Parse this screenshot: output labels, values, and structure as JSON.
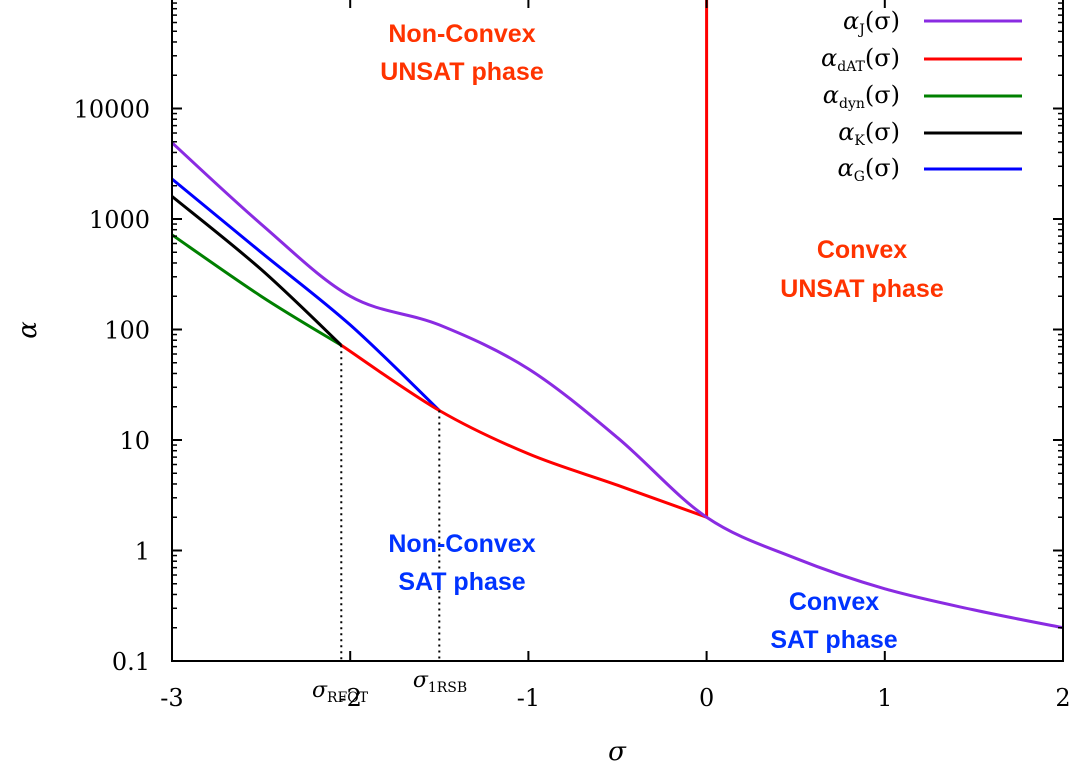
{
  "chart_data": {
    "type": "line",
    "xlabel": "σ",
    "ylabel": "α",
    "xlim": [
      -3,
      2
    ],
    "ylim": [
      0.1,
      100000
    ],
    "y_scale": "log",
    "x_ticks": [
      "-3",
      "-2",
      "-1",
      "0",
      "1",
      "2"
    ],
    "y_ticks": [
      "0.1",
      "1",
      "10",
      "100",
      "1000",
      "10000"
    ],
    "grid": false,
    "legend_position": "top-right",
    "series": [
      {
        "name": "α_J(σ)",
        "base": "α",
        "subscript": "J",
        "arg": "(σ)",
        "color": "#8a2be2",
        "x": [
          -3,
          -2.5,
          -2,
          -1.5,
          -1,
          -0.5,
          0,
          0.5,
          1,
          1.5,
          2
        ],
        "y": [
          4900,
          900,
          200,
          110,
          44,
          10.5,
          2,
          0.85,
          0.45,
          0.29,
          0.2
        ]
      },
      {
        "name": "α_dAT(σ)",
        "base": "α",
        "subscript": "dAT",
        "arg": "(σ)",
        "color": "#ff0000",
        "x": [
          -2.05,
          -1.5,
          -1,
          -0.5,
          0,
          0,
          0
        ],
        "y": [
          72,
          18.5,
          7.5,
          3.9,
          2,
          2,
          100000
        ]
      },
      {
        "name": "α_dyn(σ)",
        "base": "α",
        "subscript": "dyn",
        "arg": "(σ)",
        "color": "#008000",
        "x": [
          -3,
          -2.5,
          -2.05
        ],
        "y": [
          720,
          200,
          72
        ]
      },
      {
        "name": "α_K(σ)",
        "base": "α",
        "subscript": "K",
        "arg": "(σ)",
        "color": "#000000",
        "x": [
          -3,
          -2.5,
          -2.05
        ],
        "y": [
          1600,
          350,
          72
        ]
      },
      {
        "name": "α_G(σ)",
        "base": "α",
        "subscript": "G",
        "arg": "(σ)",
        "color": "#0000ff",
        "x": [
          -3,
          -2.5,
          -2,
          -1.5
        ],
        "y": [
          2300,
          500,
          110,
          18.5
        ]
      }
    ],
    "markers": [
      {
        "base": "σ",
        "subscript": "RFOT",
        "x": -2.05,
        "y": 72
      },
      {
        "base": "σ",
        "subscript": "1RSB",
        "x": -1.5,
        "y": 18.5
      }
    ],
    "annotations": [
      {
        "line1": "Non-Convex",
        "line2": "UNSAT phase",
        "color": "#ff3300"
      },
      {
        "line1": "Convex",
        "line2": "UNSAT phase",
        "color": "#ff3300"
      },
      {
        "line1": "Non-Convex",
        "line2": "SAT phase",
        "color": "#0033ff"
      },
      {
        "line1": "Convex",
        "line2": "SAT phase",
        "color": "#0033ff"
      }
    ]
  }
}
